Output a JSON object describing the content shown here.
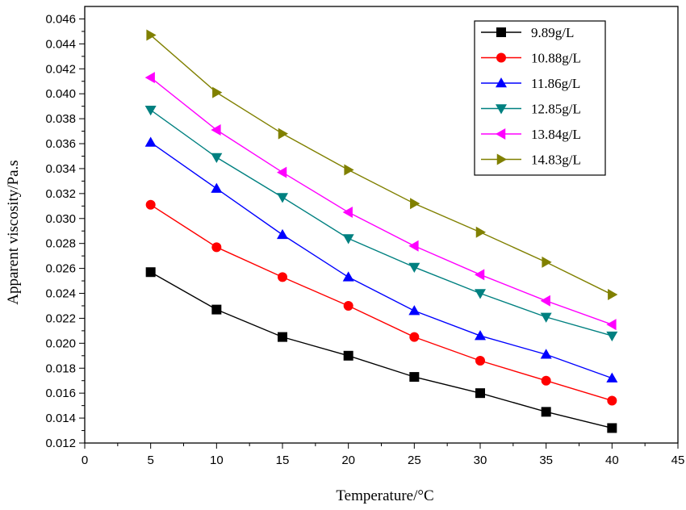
{
  "chart_data": {
    "type": "line",
    "xlabel": "Temperature/°C",
    "ylabel": "Apparent viscosity/Pa.s",
    "xlim": [
      0,
      45
    ],
    "ylim": [
      0.012,
      0.047
    ],
    "x_ticks": [
      "0",
      "5",
      "10",
      "15",
      "20",
      "25",
      "30",
      "35",
      "40",
      "45"
    ],
    "y_ticks": [
      "0.012",
      "0.014",
      "0.016",
      "0.018",
      "0.020",
      "0.022",
      "0.024",
      "0.026",
      "0.028",
      "0.030",
      "0.032",
      "0.034",
      "0.036",
      "0.038",
      "0.040",
      "0.042",
      "0.044",
      "0.046"
    ],
    "grid": false,
    "legend_position": "top-right",
    "x": [
      5,
      10,
      15,
      20,
      25,
      30,
      35,
      40
    ],
    "series": [
      {
        "name": "9.89g/L",
        "color": "#000000",
        "marker": "square",
        "values": [
          0.0257,
          0.0227,
          0.0205,
          0.019,
          0.0173,
          0.016,
          0.0145,
          0.0132
        ]
      },
      {
        "name": "10.88g/L",
        "color": "#ff0000",
        "marker": "circle",
        "values": [
          0.0311,
          0.0277,
          0.0253,
          0.023,
          0.0205,
          0.0186,
          0.017,
          0.0154
        ]
      },
      {
        "name": "11.86g/L",
        "color": "#0000ff",
        "marker": "triangle-up",
        "values": [
          0.0361,
          0.0324,
          0.0287,
          0.0253,
          0.0226,
          0.0206,
          0.0191,
          0.0172
        ]
      },
      {
        "name": "12.85g/L",
        "color": "#008080",
        "marker": "triangle-down",
        "values": [
          0.0387,
          0.0349,
          0.0317,
          0.0284,
          0.0261,
          0.024,
          0.0221,
          0.0206
        ]
      },
      {
        "name": "13.84g/L",
        "color": "#ff00ff",
        "marker": "triangle-left",
        "values": [
          0.0413,
          0.0371,
          0.0337,
          0.0305,
          0.0278,
          0.0255,
          0.0234,
          0.0215
        ]
      },
      {
        "name": "14.83g/L",
        "color": "#808000",
        "marker": "triangle-right",
        "values": [
          0.0447,
          0.0401,
          0.0368,
          0.0339,
          0.0312,
          0.0289,
          0.0265,
          0.0239
        ]
      }
    ]
  }
}
